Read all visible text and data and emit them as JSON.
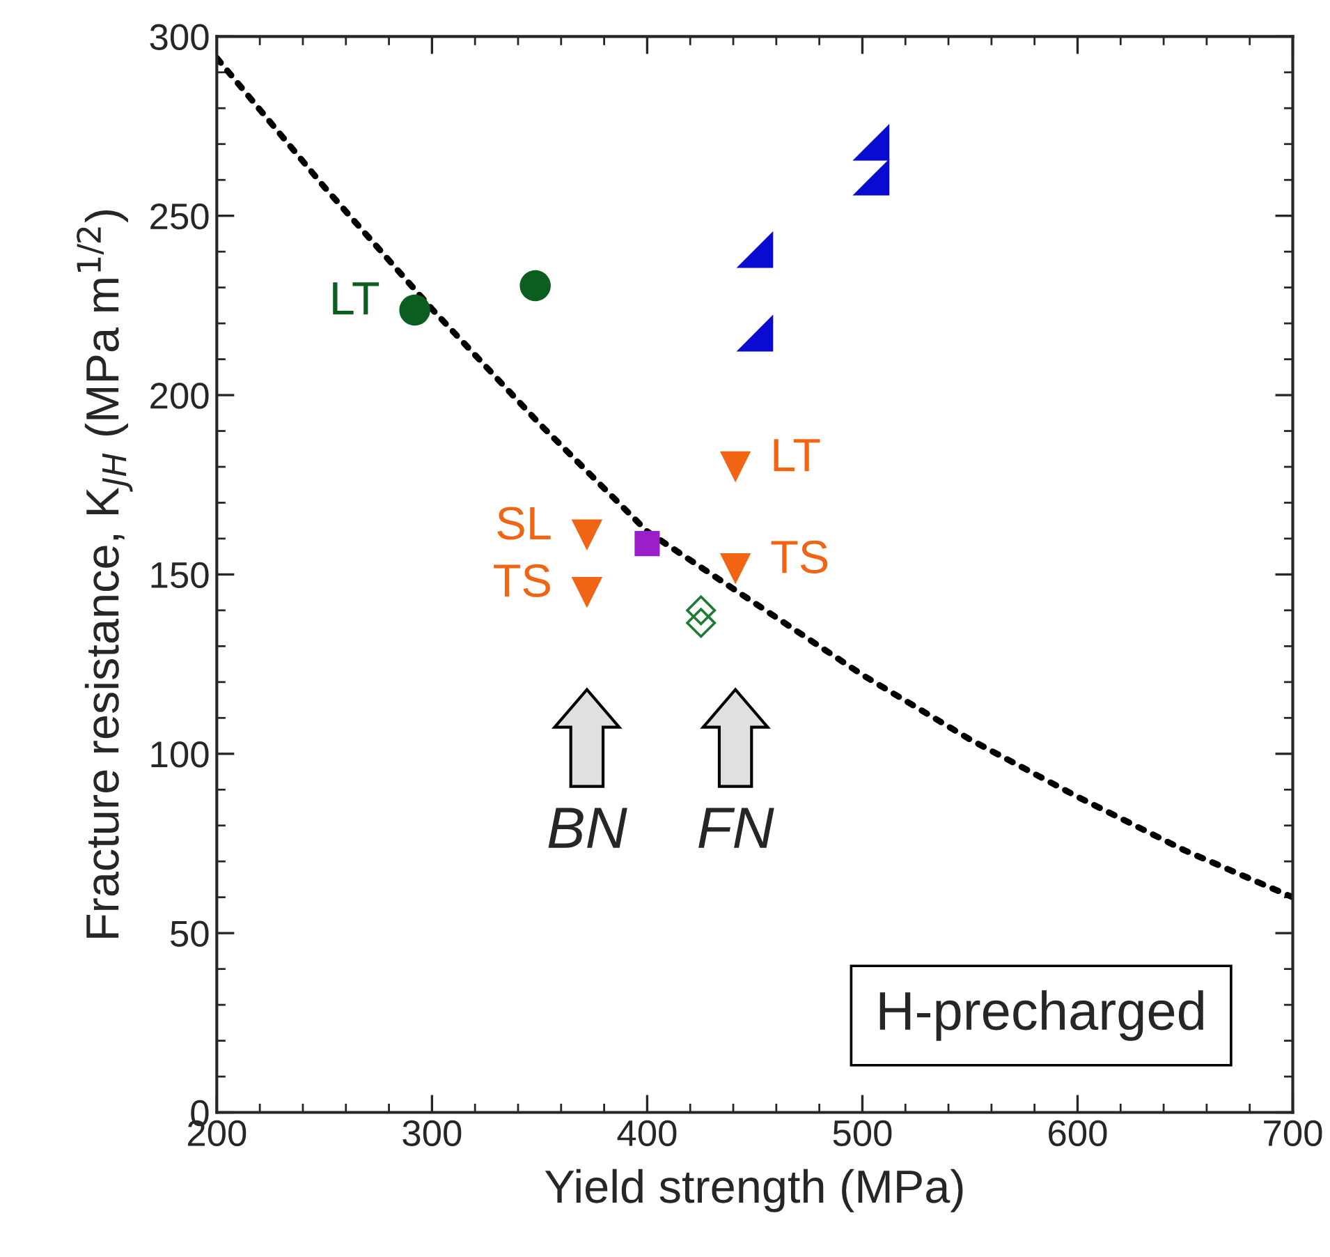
{
  "chart_data": {
    "type": "scatter",
    "xlabel": "Yield strength (MPa)",
    "ylabel": "Fracture resistance, K$_{JH}$ (MPa m$^{1/2}$)",
    "xlim": [
      200,
      700
    ],
    "ylim": [
      0,
      300
    ],
    "xticks": [
      200,
      {
        "value": 220,
        "label": null
      },
      {
        "value": 240,
        "label": null
      },
      {
        "value": 260,
        "label": null
      },
      {
        "value": 280,
        "label": null
      },
      300,
      {
        "value": 320,
        "label": null
      },
      {
        "value": 340,
        "label": null
      },
      {
        "value": 360,
        "label": null
      },
      {
        "value": 380,
        "label": null
      },
      400,
      {
        "value": 420,
        "label": null
      },
      {
        "value": 440,
        "label": null
      },
      {
        "value": 460,
        "label": null
      },
      {
        "value": 480,
        "label": null
      },
      500,
      {
        "value": 520,
        "label": null
      },
      {
        "value": 540,
        "label": null
      },
      {
        "value": 560,
        "label": null
      },
      {
        "value": 580,
        "label": null
      },
      600,
      {
        "value": 620,
        "label": null
      },
      {
        "value": 640,
        "label": null
      },
      {
        "value": 660,
        "label": null
      },
      {
        "value": 680,
        "label": null
      },
      700
    ],
    "yticks": [
      0,
      {
        "value": 10,
        "label": null
      },
      {
        "value": 20,
        "label": null
      },
      {
        "value": 30,
        "label": null
      },
      {
        "value": 40,
        "label": null
      },
      50,
      {
        "value": 60,
        "label": null
      },
      {
        "value": 70,
        "label": null
      },
      {
        "value": 80,
        "label": null
      },
      {
        "value": 90,
        "label": null
      },
      100,
      {
        "value": 110,
        "label": null
      },
      {
        "value": 120,
        "label": null
      },
      {
        "value": 130,
        "label": null
      },
      {
        "value": 140,
        "label": null
      },
      150,
      {
        "value": 160,
        "label": null
      },
      {
        "value": 170,
        "label": null
      },
      {
        "value": 180,
        "label": null
      },
      {
        "value": 190,
        "label": null
      },
      200,
      {
        "value": 210,
        "label": null
      },
      {
        "value": 220,
        "label": null
      },
      {
        "value": 230,
        "label": null
      },
      {
        "value": 240,
        "label": null
      },
      250,
      {
        "value": 260,
        "label": null
      },
      {
        "value": 270,
        "label": null
      },
      {
        "value": 280,
        "label": null
      },
      {
        "value": 290,
        "label": null
      },
      300
    ],
    "grid": false,
    "legend": false,
    "series": [
      {
        "type": "line",
        "color": "#000000",
        "line_style": "dotted",
        "marker": "none",
        "x": [
          200,
          250,
          300,
          350,
          400,
          450,
          500,
          550,
          600,
          650,
          700
        ],
        "values": [
          294,
          258,
          224,
          192,
          162,
          142,
          122,
          104,
          88,
          73,
          60
        ]
      },
      {
        "color": "#0b5e1f",
        "marker": "circle",
        "x": [
          292,
          348
        ],
        "values": [
          223.7,
          230.5
        ]
      },
      {
        "color": "#0a0ad0",
        "marker": "triangle",
        "x": [
          504,
          504,
          450,
          450
        ],
        "values": [
          270.5,
          260.8,
          240.6,
          217.3
        ]
      },
      {
        "color": "#f06414",
        "marker": "triangle",
        "x": [
          441,
          372,
          372,
          441
        ],
        "values": [
          180,
          161,
          145,
          151.6
        ]
      },
      {
        "color": "#9b1fc8",
        "marker": "square",
        "x": [
          400
        ],
        "values": [
          158.6
        ]
      },
      {
        "color": "#1f7a33",
        "marker": "diamond",
        "x": [
          425,
          425
        ],
        "values": [
          140,
          136.5
        ]
      }
    ],
    "annotations": [
      {
        "text": "LT",
        "x": 292,
        "y": 223.7
      },
      {
        "text": "LT",
        "x": 441,
        "y": 180
      },
      {
        "text": "SL",
        "x": 372,
        "y": 161
      },
      {
        "text": "TS",
        "x": 372,
        "y": 145
      },
      {
        "text": "TS",
        "x": 441,
        "y": 151.6
      },
      "BN",
      "FN",
      "H-precharged"
    ]
  }
}
